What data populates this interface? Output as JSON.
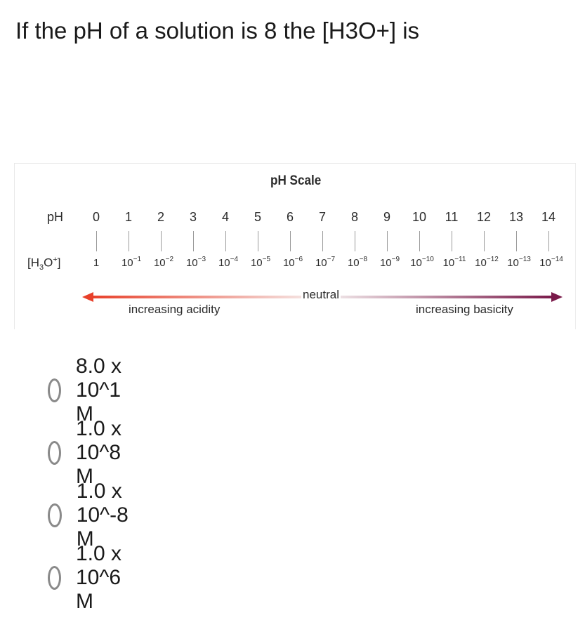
{
  "question": "If the pH of a solution is 8 the [H3O+] is",
  "figure": {
    "title": "pH Scale",
    "row_ph_label": "pH",
    "row_h3o_label": {
      "base": "[H",
      "sub": "3",
      "mid": "O",
      "sup": "+",
      "end": "]"
    },
    "ph_values": [
      "0",
      "1",
      "2",
      "3",
      "4",
      "5",
      "6",
      "7",
      "8",
      "9",
      "10",
      "11",
      "12",
      "13",
      "14"
    ],
    "concentrations": [
      {
        "base": "1",
        "exp": ""
      },
      {
        "base": "10",
        "exp": "−1"
      },
      {
        "base": "10",
        "exp": "−2"
      },
      {
        "base": "10",
        "exp": "−3"
      },
      {
        "base": "10",
        "exp": "−4"
      },
      {
        "base": "10",
        "exp": "−5"
      },
      {
        "base": "10",
        "exp": "−6"
      },
      {
        "base": "10",
        "exp": "−7"
      },
      {
        "base": "10",
        "exp": "−8"
      },
      {
        "base": "10",
        "exp": "−9"
      },
      {
        "base": "10",
        "exp": "−10"
      },
      {
        "base": "10",
        "exp": "−11"
      },
      {
        "base": "10",
        "exp": "−12"
      },
      {
        "base": "10",
        "exp": "−13"
      },
      {
        "base": "10",
        "exp": "−14"
      }
    ],
    "neutral_label": "neutral",
    "acidity_label": "increasing acidity",
    "basicity_label": "increasing basicity",
    "colors": {
      "acid": "#e8402a",
      "base": "#7a1a4a",
      "neutral": "#f6f0f0"
    }
  },
  "options": [
    {
      "label": "8.0 x 10^1 M",
      "selected": false
    },
    {
      "label": "1.0 x 10^8 M",
      "selected": false
    },
    {
      "label": "1.0 x 10^-8 M",
      "selected": false
    },
    {
      "label": "1.0 x 10^6 M",
      "selected": false
    }
  ]
}
